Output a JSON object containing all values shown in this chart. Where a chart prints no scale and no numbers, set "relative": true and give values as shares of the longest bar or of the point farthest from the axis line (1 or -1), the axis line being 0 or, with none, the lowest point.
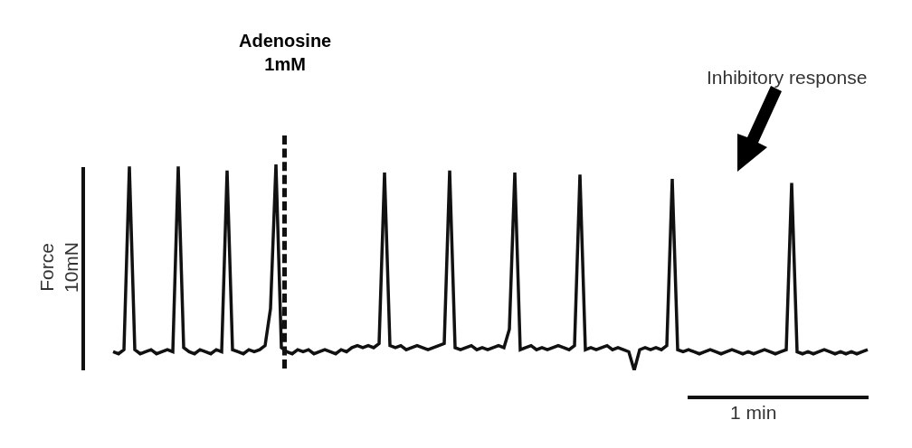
{
  "chart_data": {
    "type": "line",
    "relative": true,
    "marker": "none",
    "ylabel": "Force\n10mN",
    "categories": [
      null,
      null,
      null,
      null,
      null,
      null,
      null,
      null,
      null,
      null,
      null,
      null,
      null,
      null,
      null,
      null,
      null,
      null,
      null,
      null,
      null,
      null,
      null,
      null,
      null,
      null,
      null,
      null,
      null,
      null,
      null,
      null,
      null,
      null,
      null,
      null,
      null,
      null,
      null,
      null,
      null,
      null,
      null,
      null,
      null,
      null,
      null,
      null,
      null,
      null,
      null,
      null,
      null,
      null,
      null,
      null,
      null,
      null,
      null,
      null,
      null,
      null,
      null,
      null,
      null,
      null,
      null,
      null,
      null,
      null,
      null,
      null,
      null,
      null,
      null,
      null,
      null,
      null,
      null,
      null,
      null,
      null,
      null,
      null,
      null,
      null,
      null,
      null,
      null,
      null,
      null,
      null,
      null,
      null,
      null,
      null,
      null,
      null,
      null,
      null,
      null,
      null,
      null,
      null,
      null,
      null,
      null,
      null,
      null,
      null,
      null,
      null,
      null,
      null,
      null,
      null,
      null,
      null,
      null,
      null,
      null,
      null,
      null,
      null,
      null,
      null,
      null,
      null,
      null,
      null,
      null,
      null,
      null,
      null,
      null,
      null,
      null,
      null,
      null,
      null
    ],
    "series": [
      {
        "color": "#111111",
        "values": [
          0.09,
          0.08,
          0.1,
          0.99,
          0.1,
          0.08,
          0.09,
          0.1,
          0.08,
          0.09,
          0.1,
          0.09,
          0.99,
          0.11,
          0.09,
          0.08,
          0.1,
          0.09,
          0.08,
          0.1,
          0.09,
          0.97,
          0.1,
          0.09,
          0.08,
          0.1,
          0.09,
          0.1,
          0.12,
          0.3,
          1,
          0.11,
          0.09,
          0.08,
          0.1,
          0.09,
          0.1,
          0.08,
          0.09,
          0.1,
          0.09,
          0.08,
          0.1,
          0.09,
          0.11,
          0.12,
          0.11,
          0.12,
          0.11,
          0.13,
          0.96,
          0.12,
          0.11,
          0.12,
          0.1,
          0.11,
          0.12,
          0.11,
          0.1,
          0.11,
          0.12,
          0.13,
          0.97,
          0.11,
          0.1,
          0.11,
          0.12,
          0.1,
          0.11,
          0.1,
          0.11,
          0.12,
          0.11,
          0.2,
          0.96,
          0.1,
          0.11,
          0.12,
          0.1,
          0.11,
          0.1,
          0.11,
          0.12,
          0.11,
          0.1,
          0.12,
          0.95,
          0.1,
          0.11,
          0.1,
          0.11,
          0.12,
          0.1,
          0.11,
          0.1,
          0.09,
          0,
          0.1,
          0.11,
          0.1,
          0.11,
          0.1,
          0.12,
          0.93,
          0.1,
          0.09,
          0.1,
          0.09,
          0.08,
          0.09,
          0.1,
          0.09,
          0.08,
          0.09,
          0.1,
          0.09,
          0.08,
          0.09,
          0.08,
          0.09,
          0.1,
          0.09,
          0.08,
          0.09,
          0.1,
          0.91,
          0.09,
          0.08,
          0.09,
          0.08,
          0.09,
          0.1,
          0.09,
          0.08,
          0.09,
          0.08,
          0.09,
          0.08,
          0.09,
          0.1
        ]
      }
    ],
    "annotations": [
      "Inhibitory response",
      "1 min",
      "Adenosine\n1mM"
    ]
  }
}
